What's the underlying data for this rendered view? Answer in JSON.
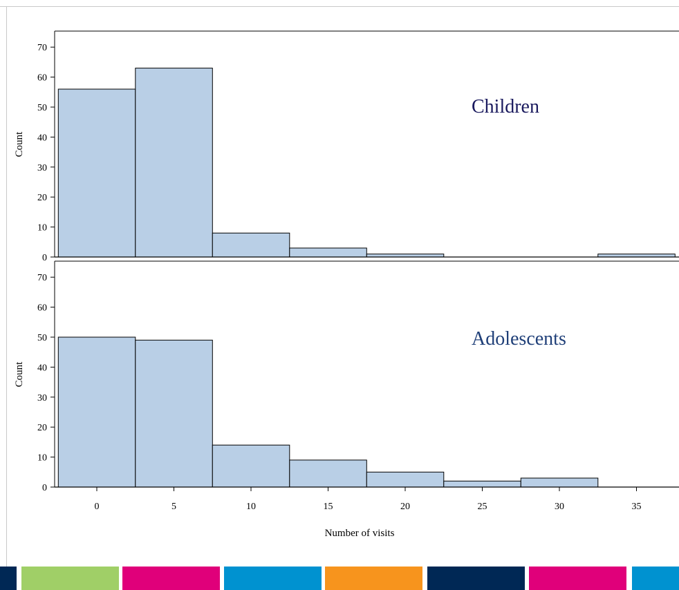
{
  "chart_data": [
    {
      "type": "bar",
      "panel_label": "Children",
      "ylabel": "Count",
      "bins": [
        {
          "x_start": -2.5,
          "x_end": 2.5,
          "count": 56
        },
        {
          "x_start": 2.5,
          "x_end": 7.5,
          "count": 63
        },
        {
          "x_start": 7.5,
          "x_end": 12.5,
          "count": 8
        },
        {
          "x_start": 12.5,
          "x_end": 17.5,
          "count": 3
        },
        {
          "x_start": 17.5,
          "x_end": 22.5,
          "count": 1
        },
        {
          "x_start": 22.5,
          "x_end": 27.5,
          "count": 0
        },
        {
          "x_start": 27.5,
          "x_end": 32.5,
          "count": 0
        },
        {
          "x_start": 32.5,
          "x_end": 37.5,
          "count": 1
        }
      ],
      "yticks": [
        0,
        10,
        20,
        30,
        40,
        50,
        60,
        70
      ],
      "ylim": [
        0,
        75
      ],
      "xlim": [
        -3,
        37.5
      ],
      "label_color": "#1a1a5e"
    },
    {
      "type": "bar",
      "panel_label": "Adolescents",
      "ylabel": "Count",
      "xlabel": "Number of visits",
      "bins": [
        {
          "x_start": -2.5,
          "x_end": 2.5,
          "count": 50
        },
        {
          "x_start": 2.5,
          "x_end": 7.5,
          "count": 49
        },
        {
          "x_start": 7.5,
          "x_end": 12.5,
          "count": 14
        },
        {
          "x_start": 12.5,
          "x_end": 17.5,
          "count": 9
        },
        {
          "x_start": 17.5,
          "x_end": 22.5,
          "count": 5
        },
        {
          "x_start": 22.5,
          "x_end": 27.5,
          "count": 2
        },
        {
          "x_start": 27.5,
          "x_end": 32.5,
          "count": 3
        },
        {
          "x_start": 32.5,
          "x_end": 37.5,
          "count": 0
        }
      ],
      "yticks": [
        0,
        10,
        20,
        30,
        40,
        50,
        60,
        70
      ],
      "xticks": [
        0,
        5,
        10,
        15,
        20,
        25,
        30,
        35
      ],
      "ylim": [
        0,
        75
      ],
      "xlim": [
        -3,
        37.5
      ],
      "label_color": "#1f3f78"
    }
  ],
  "colors": {
    "bar_fill": "#b9cfe6",
    "bar_stroke": "#000000"
  },
  "footer_stripes": [
    {
      "name": "navy",
      "color": "#002855"
    },
    {
      "name": "green",
      "color": "#a0cf67"
    },
    {
      "name": "magenta",
      "color": "#e0007a"
    },
    {
      "name": "blue",
      "color": "#0092d0"
    },
    {
      "name": "orange",
      "color": "#f7941d"
    },
    {
      "name": "navy",
      "color": "#002855"
    },
    {
      "name": "magenta",
      "color": "#e0007a"
    },
    {
      "name": "blue",
      "color": "#0092d0"
    }
  ]
}
